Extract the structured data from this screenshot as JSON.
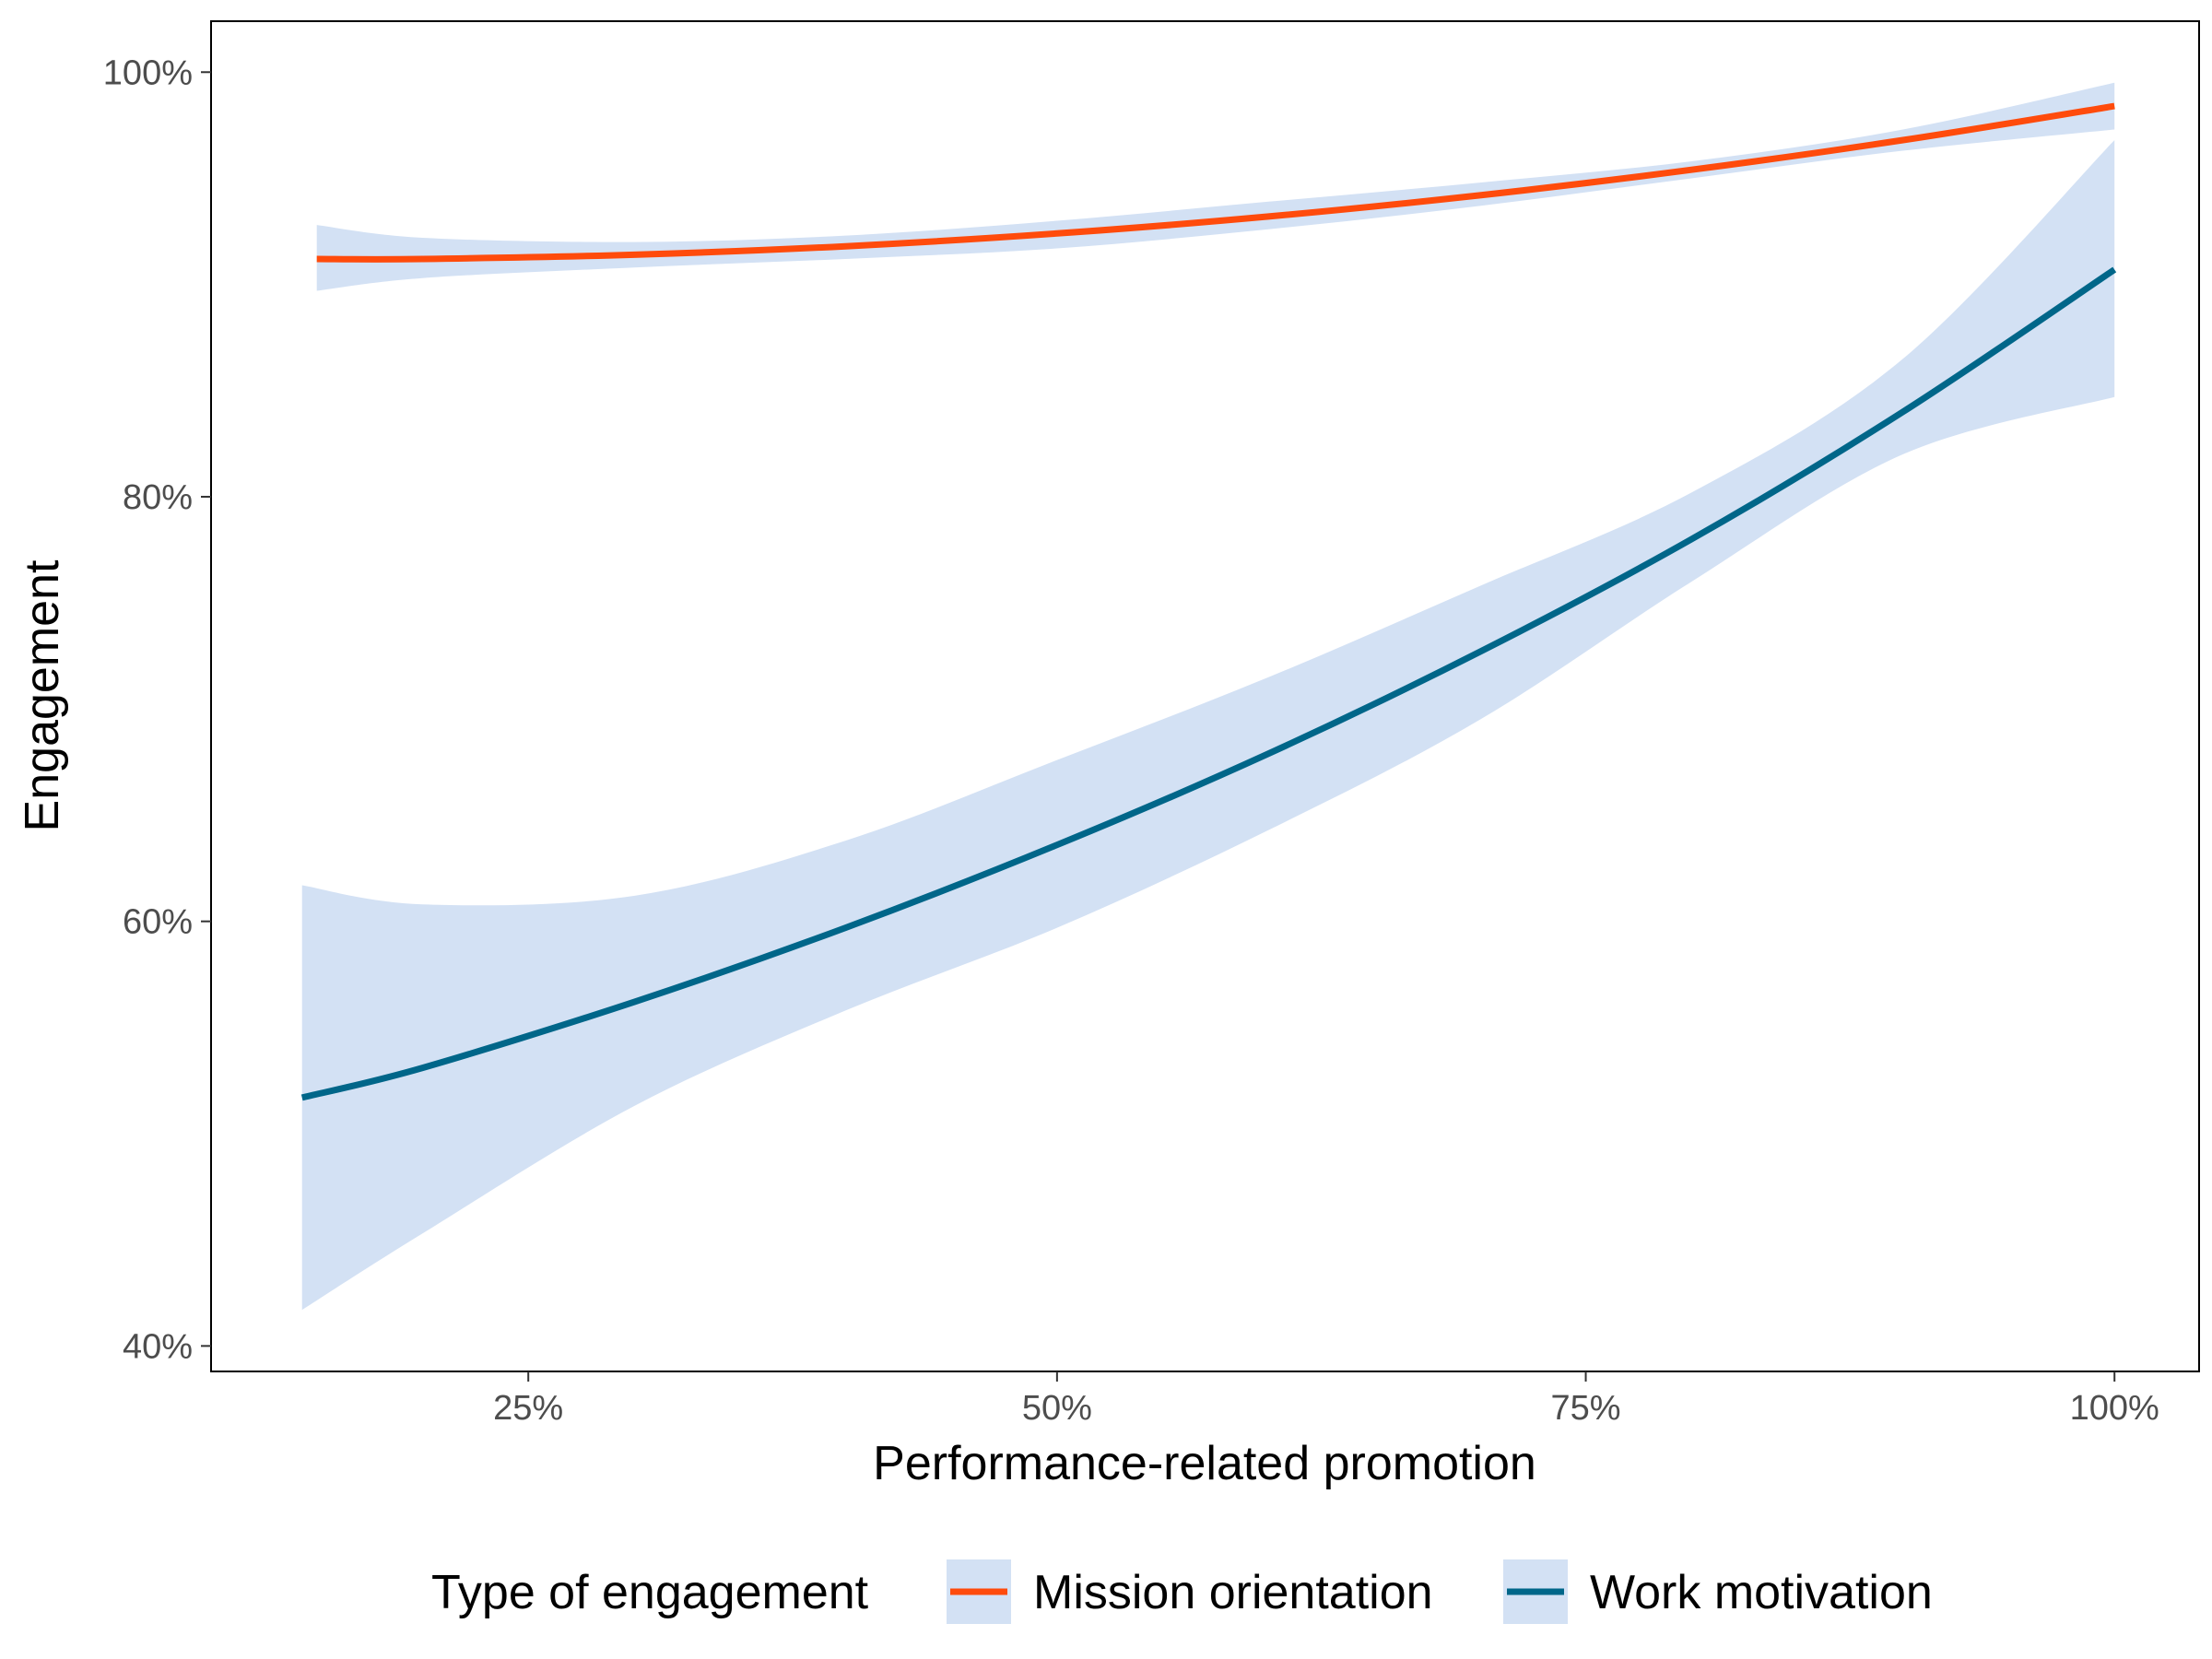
{
  "chart_data": {
    "type": "line",
    "xlabel": "Performance-related promotion",
    "ylabel": "Engagement",
    "xlim": [
      0.1,
      1.04
    ],
    "ylim": [
      0.388,
      1.024
    ],
    "x_ticks": [
      0.25,
      0.5,
      0.75,
      1.0
    ],
    "x_tick_labels": [
      "25%",
      "50%",
      "75%",
      "100%"
    ],
    "y_ticks": [
      0.4,
      0.6,
      0.8,
      1.0
    ],
    "y_tick_labels": [
      "40%",
      "60%",
      "80%",
      "100%"
    ],
    "grid": false,
    "legend": {
      "title": "Type of engagement",
      "position": "bottom",
      "ribbon_color": "#d3e1f4"
    },
    "series": [
      {
        "name": "Mission orientation",
        "color": "#ff4b0c",
        "x": [
          0.15,
          0.2,
          0.3,
          0.4,
          0.5,
          0.6,
          0.7,
          0.8,
          0.9,
          1.0
        ],
        "y": [
          0.912,
          0.912,
          0.914,
          0.918,
          0.924,
          0.932,
          0.942,
          0.954,
          0.968,
          0.984
        ],
        "lower": [
          0.897,
          0.903,
          0.908,
          0.912,
          0.917,
          0.926,
          0.937,
          0.95,
          0.963,
          0.973
        ],
        "upper": [
          0.928,
          0.922,
          0.92,
          0.923,
          0.93,
          0.939,
          0.948,
          0.958,
          0.973,
          0.995
        ]
      },
      {
        "name": "Work motivation",
        "color": "#006689",
        "x": [
          0.143,
          0.2,
          0.3,
          0.4,
          0.5,
          0.6,
          0.7,
          0.8,
          0.9,
          1.0
        ],
        "y": [
          0.517,
          0.531,
          0.562,
          0.597,
          0.636,
          0.679,
          0.727,
          0.78,
          0.84,
          0.907
        ],
        "lower": [
          0.417,
          0.453,
          0.513,
          0.558,
          0.597,
          0.643,
          0.695,
          0.76,
          0.82,
          0.847
        ],
        "upper": [
          0.617,
          0.608,
          0.612,
          0.638,
          0.676,
          0.715,
          0.758,
          0.802,
          0.865,
          0.968
        ]
      }
    ]
  }
}
